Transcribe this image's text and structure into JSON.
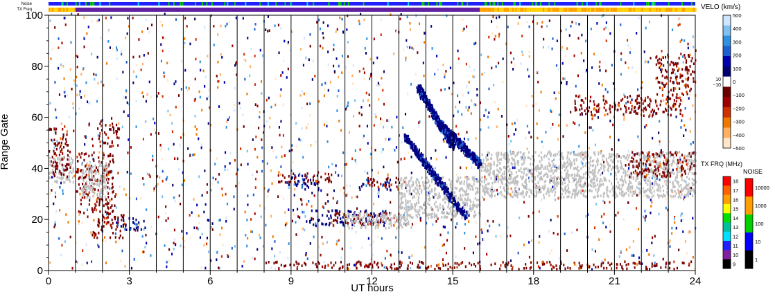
{
  "chart_data": {
    "type": "heatmap",
    "title": "",
    "xlabel": "UT hours",
    "ylabel": "Range Gate",
    "xlim": [
      0,
      24
    ],
    "ylim": [
      0,
      100
    ],
    "x_ticks": [
      "0",
      "3",
      "6",
      "9",
      "12",
      "15",
      "18",
      "21",
      "24"
    ],
    "y_ticks": [
      "0",
      "20",
      "40",
      "60",
      "80",
      "100"
    ],
    "hour_markers": [
      1,
      2,
      3,
      4,
      5,
      6,
      7,
      8,
      9,
      10,
      11,
      12,
      13,
      14,
      15,
      16,
      17,
      18,
      19,
      20,
      21,
      22,
      23
    ],
    "strip_labels": {
      "noise": "Noise",
      "tx_freq": "TX Freq"
    },
    "velocity_colorbar": {
      "label": "VELO (km/s)",
      "ticks": [
        "500",
        "400",
        "300",
        "200",
        "100",
        "0",
        "−100",
        "−200",
        "−300",
        "−400",
        "−500"
      ],
      "near_zero": [
        "10",
        "−10"
      ],
      "colors_top_to_bottom": [
        "#cfe6ff",
        "#7fc0f0",
        "#2f8fe0",
        "#1f5fd0",
        "#0000b0",
        "#000070",
        "#ffffff",
        "#6b0000",
        "#a00000",
        "#d03000",
        "#f07800",
        "#ffb060",
        "#ffe6c8"
      ]
    },
    "tx_freq_colorbar": {
      "label": "TX FRQ (MHz)",
      "ticks": [
        "18",
        "17",
        "16",
        "15",
        "14",
        "13",
        "12",
        "11",
        "10",
        "9"
      ],
      "colors": [
        "#ff0000",
        "#ff6000",
        "#ffa000",
        "#ffff00",
        "#00e000",
        "#00c0a0",
        "#00e0ff",
        "#2020ff",
        "#8020a0",
        "#000000"
      ]
    },
    "noise_colorbar": {
      "label": "NOISE",
      "ticks": [
        "10000",
        "1000",
        "100",
        "10",
        "1"
      ],
      "colors": [
        "#ff0000",
        "#ffa000",
        "#00d000",
        "#0000ff",
        "#000000"
      ]
    },
    "ground_scatter_color": "#c0c0c0",
    "features": [
      {
        "kind": "ground",
        "t": [
          0,
          0.9
        ],
        "r": [
          34,
          44
        ]
      },
      {
        "kind": "negative",
        "t": [
          0,
          0.8
        ],
        "r": [
          36,
          56
        ]
      },
      {
        "kind": "negative",
        "t": [
          1,
          2.4
        ],
        "r": [
          22,
          46
        ]
      },
      {
        "kind": "ground",
        "t": [
          1.2,
          2.2
        ],
        "r": [
          28,
          42
        ]
      },
      {
        "kind": "negative",
        "t": [
          1.8,
          2.6
        ],
        "r": [
          48,
          58
        ]
      },
      {
        "kind": "negative",
        "t": [
          1.6,
          2.8
        ],
        "r": [
          12,
          22
        ]
      },
      {
        "kind": "positive",
        "t": [
          2.5,
          3.7
        ],
        "r": [
          15,
          20
        ]
      },
      {
        "kind": "positive",
        "t": [
          8.8,
          10
        ],
        "r": [
          31,
          37
        ]
      },
      {
        "kind": "negative",
        "t": [
          8.5,
          10.5
        ],
        "r": [
          34,
          38
        ]
      },
      {
        "kind": "positive",
        "t": [
          9.5,
          12.5
        ],
        "r": [
          17,
          23
        ]
      },
      {
        "kind": "negative",
        "t": [
          10.5,
          13
        ],
        "r": [
          17,
          22
        ]
      },
      {
        "kind": "ground",
        "t": [
          11,
          13.5
        ],
        "r": [
          16,
          22
        ]
      },
      {
        "kind": "positive",
        "t": [
          11.5,
          12.7
        ],
        "r": [
          31,
          35
        ]
      },
      {
        "kind": "negative",
        "t": [
          11.8,
          13
        ],
        "r": [
          32,
          36
        ]
      },
      {
        "kind": "ground",
        "t": [
          13,
          16
        ],
        "r": [
          20,
          36
        ]
      },
      {
        "kind": "ground",
        "t": [
          16,
          24
        ],
        "r": [
          28,
          46
        ]
      },
      {
        "kind": "negative",
        "t": [
          8,
          24
        ],
        "r": [
          0,
          3
        ]
      },
      {
        "kind": "negative",
        "t": [
          21.5,
          24
        ],
        "r": [
          36,
          46
        ]
      },
      {
        "kind": "negative",
        "t": [
          22.5,
          24
        ],
        "r": [
          68,
          84
        ]
      },
      {
        "kind": "negative",
        "t": [
          19.5,
          23.5
        ],
        "r": [
          60,
          68
        ]
      }
    ],
    "arcs": [
      {
        "kind": "positive",
        "t": [
          13.7,
          15
        ],
        "r": [
          71,
          48
        ]
      },
      {
        "kind": "positive",
        "t": [
          13.2,
          15.5
        ],
        "r": [
          52,
          20
        ]
      },
      {
        "kind": "positive",
        "t": [
          14.5,
          16
        ],
        "r": [
          57,
          41
        ]
      }
    ],
    "tx_freq_strip": [
      {
        "t": [
          0,
          1
        ],
        "value": "15-16"
      },
      {
        "t": [
          1,
          16
        ],
        "value": "10"
      },
      {
        "t": [
          16,
          24
        ],
        "value": "15-16"
      }
    ]
  }
}
